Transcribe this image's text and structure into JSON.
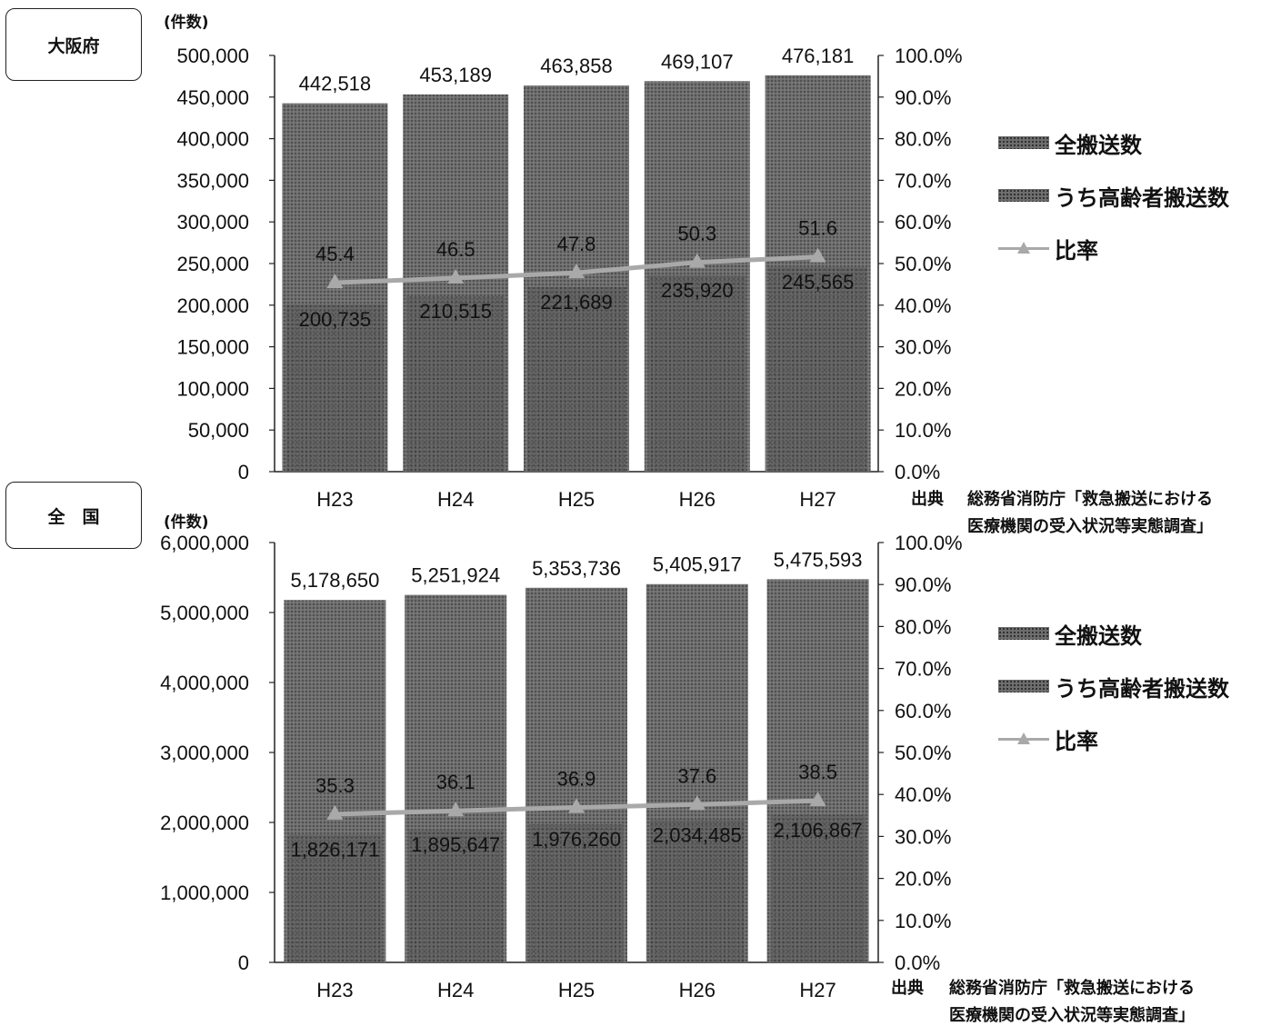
{
  "chart_data": [
    {
      "type": "bar",
      "region": "大阪府",
      "ylabel": "(件数)",
      "categories": [
        "H23",
        "H24",
        "H25",
        "H26",
        "H27"
      ],
      "ylim": [
        0,
        500000
      ],
      "yticks": [
        "0",
        "50,000",
        "100,000",
        "150,000",
        "200,000",
        "250,000",
        "300,000",
        "350,000",
        "400,000",
        "450,000",
        "500,000"
      ],
      "y2lim": [
        0,
        100
      ],
      "y2ticks": [
        "0.0%",
        "10.0%",
        "20.0%",
        "30.0%",
        "40.0%",
        "50.0%",
        "60.0%",
        "70.0%",
        "80.0%",
        "90.0%",
        "100.0%"
      ],
      "series": [
        {
          "name": "全搬送数",
          "values": [
            442518,
            453189,
            463858,
            469107,
            476181
          ],
          "labels": [
            "442,518",
            "453,189",
            "463,858",
            "469,107",
            "476,181"
          ]
        },
        {
          "name": "うち高齢者搬送数",
          "values": [
            200735,
            210515,
            221689,
            235920,
            245565
          ],
          "labels": [
            "200,735",
            "210,515",
            "221,689",
            "235,920",
            "245,565"
          ]
        },
        {
          "name": "比率",
          "values": [
            45.4,
            46.5,
            47.8,
            50.3,
            51.6
          ],
          "labels": [
            "45.4",
            "46.5",
            "47.8",
            "50.3",
            "51.6"
          ]
        }
      ],
      "source_label": "出典",
      "source_line1": "総務省消防庁「救急搬送における",
      "source_line2": "医療機関の受入状況等実態調査」"
    },
    {
      "type": "bar",
      "region": "全　国",
      "ylabel": "(件数)",
      "categories": [
        "H23",
        "H24",
        "H25",
        "H26",
        "H27"
      ],
      "ylim": [
        0,
        6000000
      ],
      "yticks": [
        "0",
        "1,000,000",
        "2,000,000",
        "3,000,000",
        "4,000,000",
        "5,000,000",
        "6,000,000"
      ],
      "y2lim": [
        0,
        100
      ],
      "y2ticks": [
        "0.0%",
        "10.0%",
        "20.0%",
        "30.0%",
        "40.0%",
        "50.0%",
        "60.0%",
        "70.0%",
        "80.0%",
        "90.0%",
        "100.0%"
      ],
      "series": [
        {
          "name": "全搬送数",
          "values": [
            5178650,
            5251924,
            5353736,
            5405917,
            5475593
          ],
          "labels": [
            "5,178,650",
            "5,251,924",
            "5,353,736",
            "5,405,917",
            "5,475,593"
          ]
        },
        {
          "name": "うち高齢者搬送数",
          "values": [
            1826171,
            1895647,
            1976260,
            2034485,
            2106867
          ],
          "labels": [
            "1,826,171",
            "1,895,647",
            "1,976,260",
            "2,034,485",
            "2,106,867"
          ]
        },
        {
          "name": "比率",
          "values": [
            35.3,
            36.1,
            36.9,
            37.6,
            38.5
          ],
          "labels": [
            "35.3",
            "36.1",
            "36.9",
            "37.6",
            "38.5"
          ]
        }
      ],
      "source_label": "出典",
      "source_line1": "総務省消防庁「救急搬送における",
      "source_line2": "医療機関の受入状況等実態調査」"
    }
  ],
  "colors": {
    "total_bar": "#6e6e6e",
    "elderly_bar": "#555555",
    "ratio_line": "#a9a9a9"
  }
}
